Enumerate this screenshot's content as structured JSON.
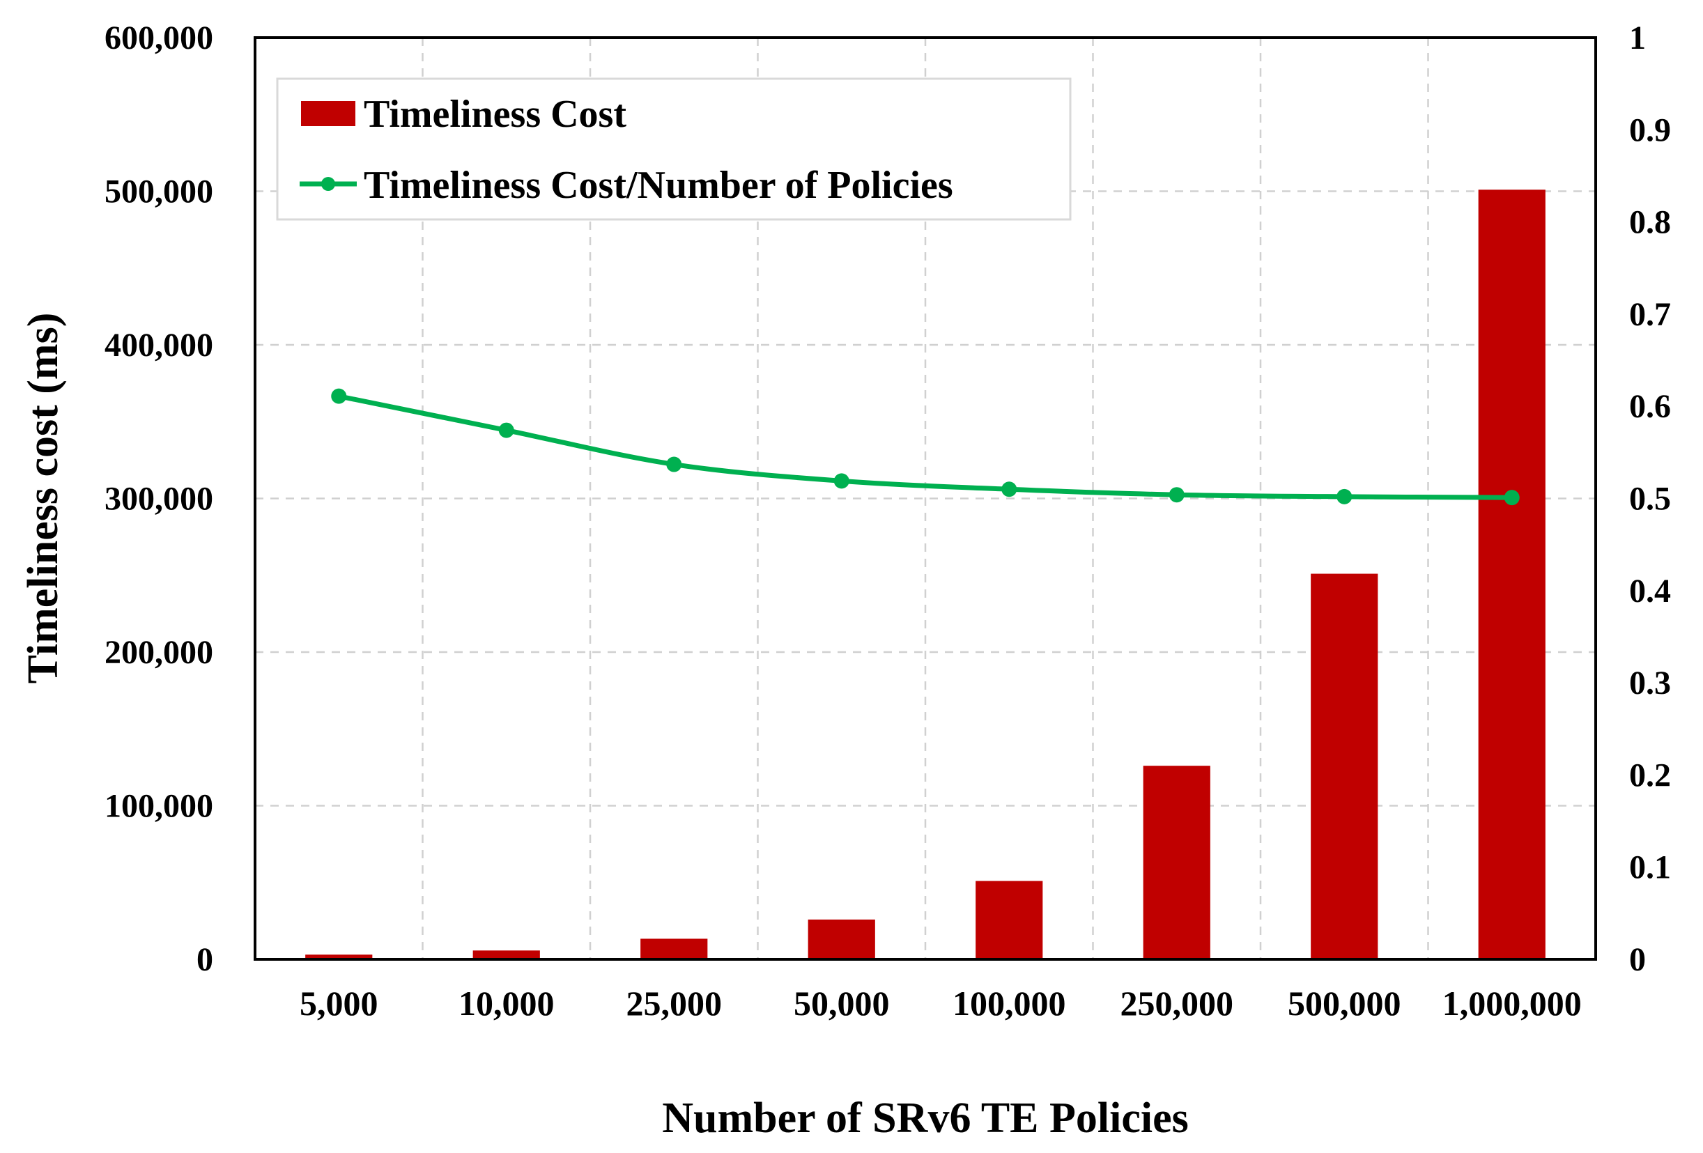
{
  "chart_data": {
    "type": "bar+line",
    "categories": [
      "5,000",
      "10,000",
      "25,000",
      "50,000",
      "100,000",
      "250,000",
      "500,000",
      "1,000,000"
    ],
    "series": [
      {
        "name": "Timeliness Cost",
        "type": "bar",
        "axis": "left",
        "color": "#c00000",
        "values": [
          3050,
          5750,
          13400,
          25900,
          51000,
          126000,
          251000,
          501000
        ]
      },
      {
        "name": "Timeliness Cost/Number of Policies",
        "type": "line",
        "axis": "right",
        "color": "#00b050",
        "values": [
          0.611,
          0.574,
          0.537,
          0.519,
          0.51,
          0.504,
          0.502,
          0.501
        ]
      }
    ],
    "xlabel": "Number of SRv6 TE Policies",
    "ylabel": "Timeliness cost (ms)",
    "ylim": [
      0,
      600000
    ],
    "y2lim": [
      0,
      1
    ],
    "yticks": [
      "0",
      "100,000",
      "200,000",
      "300,000",
      "400,000",
      "500,000",
      "600,000"
    ],
    "y2ticks": [
      "0",
      "0.1",
      "0.2",
      "0.3",
      "0.4",
      "0.5",
      "0.6",
      "0.7",
      "0.8",
      "0.9",
      "1"
    ],
    "grid": true,
    "legend_position": "top-left"
  }
}
